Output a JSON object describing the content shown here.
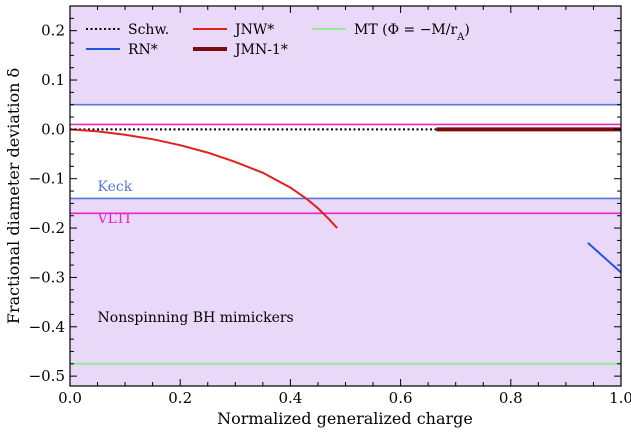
{
  "colors": {
    "excluded_fill": "#e9d8f8",
    "schw": "#000000",
    "rn": "#1f55e0",
    "jnw": "#e0201a",
    "jmn1": "#7a0b0b",
    "mt": "#90ee90",
    "keck": "#5577dd",
    "vlti": "#ee22cc"
  },
  "chart_data": {
    "type": "line",
    "xlabel": "Normalized generalized charge",
    "ylabel": "Fractional diameter deviation δ",
    "xlim": [
      0.0,
      1.0
    ],
    "ylim": [
      -0.52,
      0.25
    ],
    "xticks": [
      0.0,
      0.2,
      0.4,
      0.6,
      0.8,
      1.0
    ],
    "xtick_labels": [
      "0.0",
      "0.2",
      "0.4",
      "0.6",
      "0.8",
      "1.0"
    ],
    "yticks": [
      0.2,
      0.1,
      0.0,
      -0.1,
      -0.2,
      -0.3,
      -0.4,
      -0.5
    ],
    "ytick_labels": [
      "0.2",
      "0.1",
      "0.0",
      "−0.1",
      "−0.2",
      "−0.3",
      "−0.4",
      "−0.5"
    ],
    "legend_placement": "top-left",
    "allowed_band": {
      "keck": [
        -0.14,
        0.05
      ],
      "vlti": [
        -0.17,
        0.01
      ]
    },
    "bounds": [
      {
        "name": "Keck",
        "color_key": "keck",
        "values": [
          0.05,
          -0.14
        ]
      },
      {
        "name": "VLTI",
        "color_key": "vlti",
        "values": [
          0.01,
          -0.17
        ]
      }
    ],
    "series": [
      {
        "name": "Schw.",
        "color_key": "schw",
        "style": "dotted",
        "width": 2,
        "x": [
          0.0,
          0.665
        ],
        "y": [
          0.0,
          0.0
        ]
      },
      {
        "name": "RN*",
        "color_key": "rn",
        "style": "solid",
        "width": 2,
        "x": [
          0.94,
          0.96,
          0.98,
          1.0
        ],
        "y": [
          -0.23,
          -0.25,
          -0.27,
          -0.29
        ]
      },
      {
        "name": "JNW*",
        "color_key": "jnw",
        "style": "solid",
        "width": 2,
        "x": [
          0.0,
          0.05,
          0.1,
          0.15,
          0.2,
          0.25,
          0.3,
          0.35,
          0.4,
          0.43,
          0.45,
          0.47,
          0.485
        ],
        "y": [
          0.0,
          -0.004,
          -0.011,
          -0.02,
          -0.032,
          -0.047,
          -0.066,
          -0.088,
          -0.118,
          -0.141,
          -0.16,
          -0.182,
          -0.2
        ]
      },
      {
        "name": "JMN-1*",
        "color_key": "jmn1",
        "style": "solid",
        "width": 4,
        "x": [
          0.665,
          1.0
        ],
        "y": [
          0.0,
          0.0
        ]
      },
      {
        "name": "MT (Φ = −M/r<sub>A</sub>)",
        "color_key": "mt",
        "style": "solid",
        "width": 2,
        "x": [
          0.0,
          1.0
        ],
        "y": [
          -0.475,
          -0.475
        ]
      }
    ],
    "annotations": [
      {
        "text": "Keck",
        "x": 0.05,
        "y": -0.125,
        "color_key": "keck"
      },
      {
        "text": "VLTI",
        "x": 0.05,
        "y": -0.19,
        "color_key": "vlti"
      },
      {
        "text": "Nonspinning BH mimickers",
        "x": 0.05,
        "y": -0.39,
        "color_key": "schw"
      }
    ]
  }
}
